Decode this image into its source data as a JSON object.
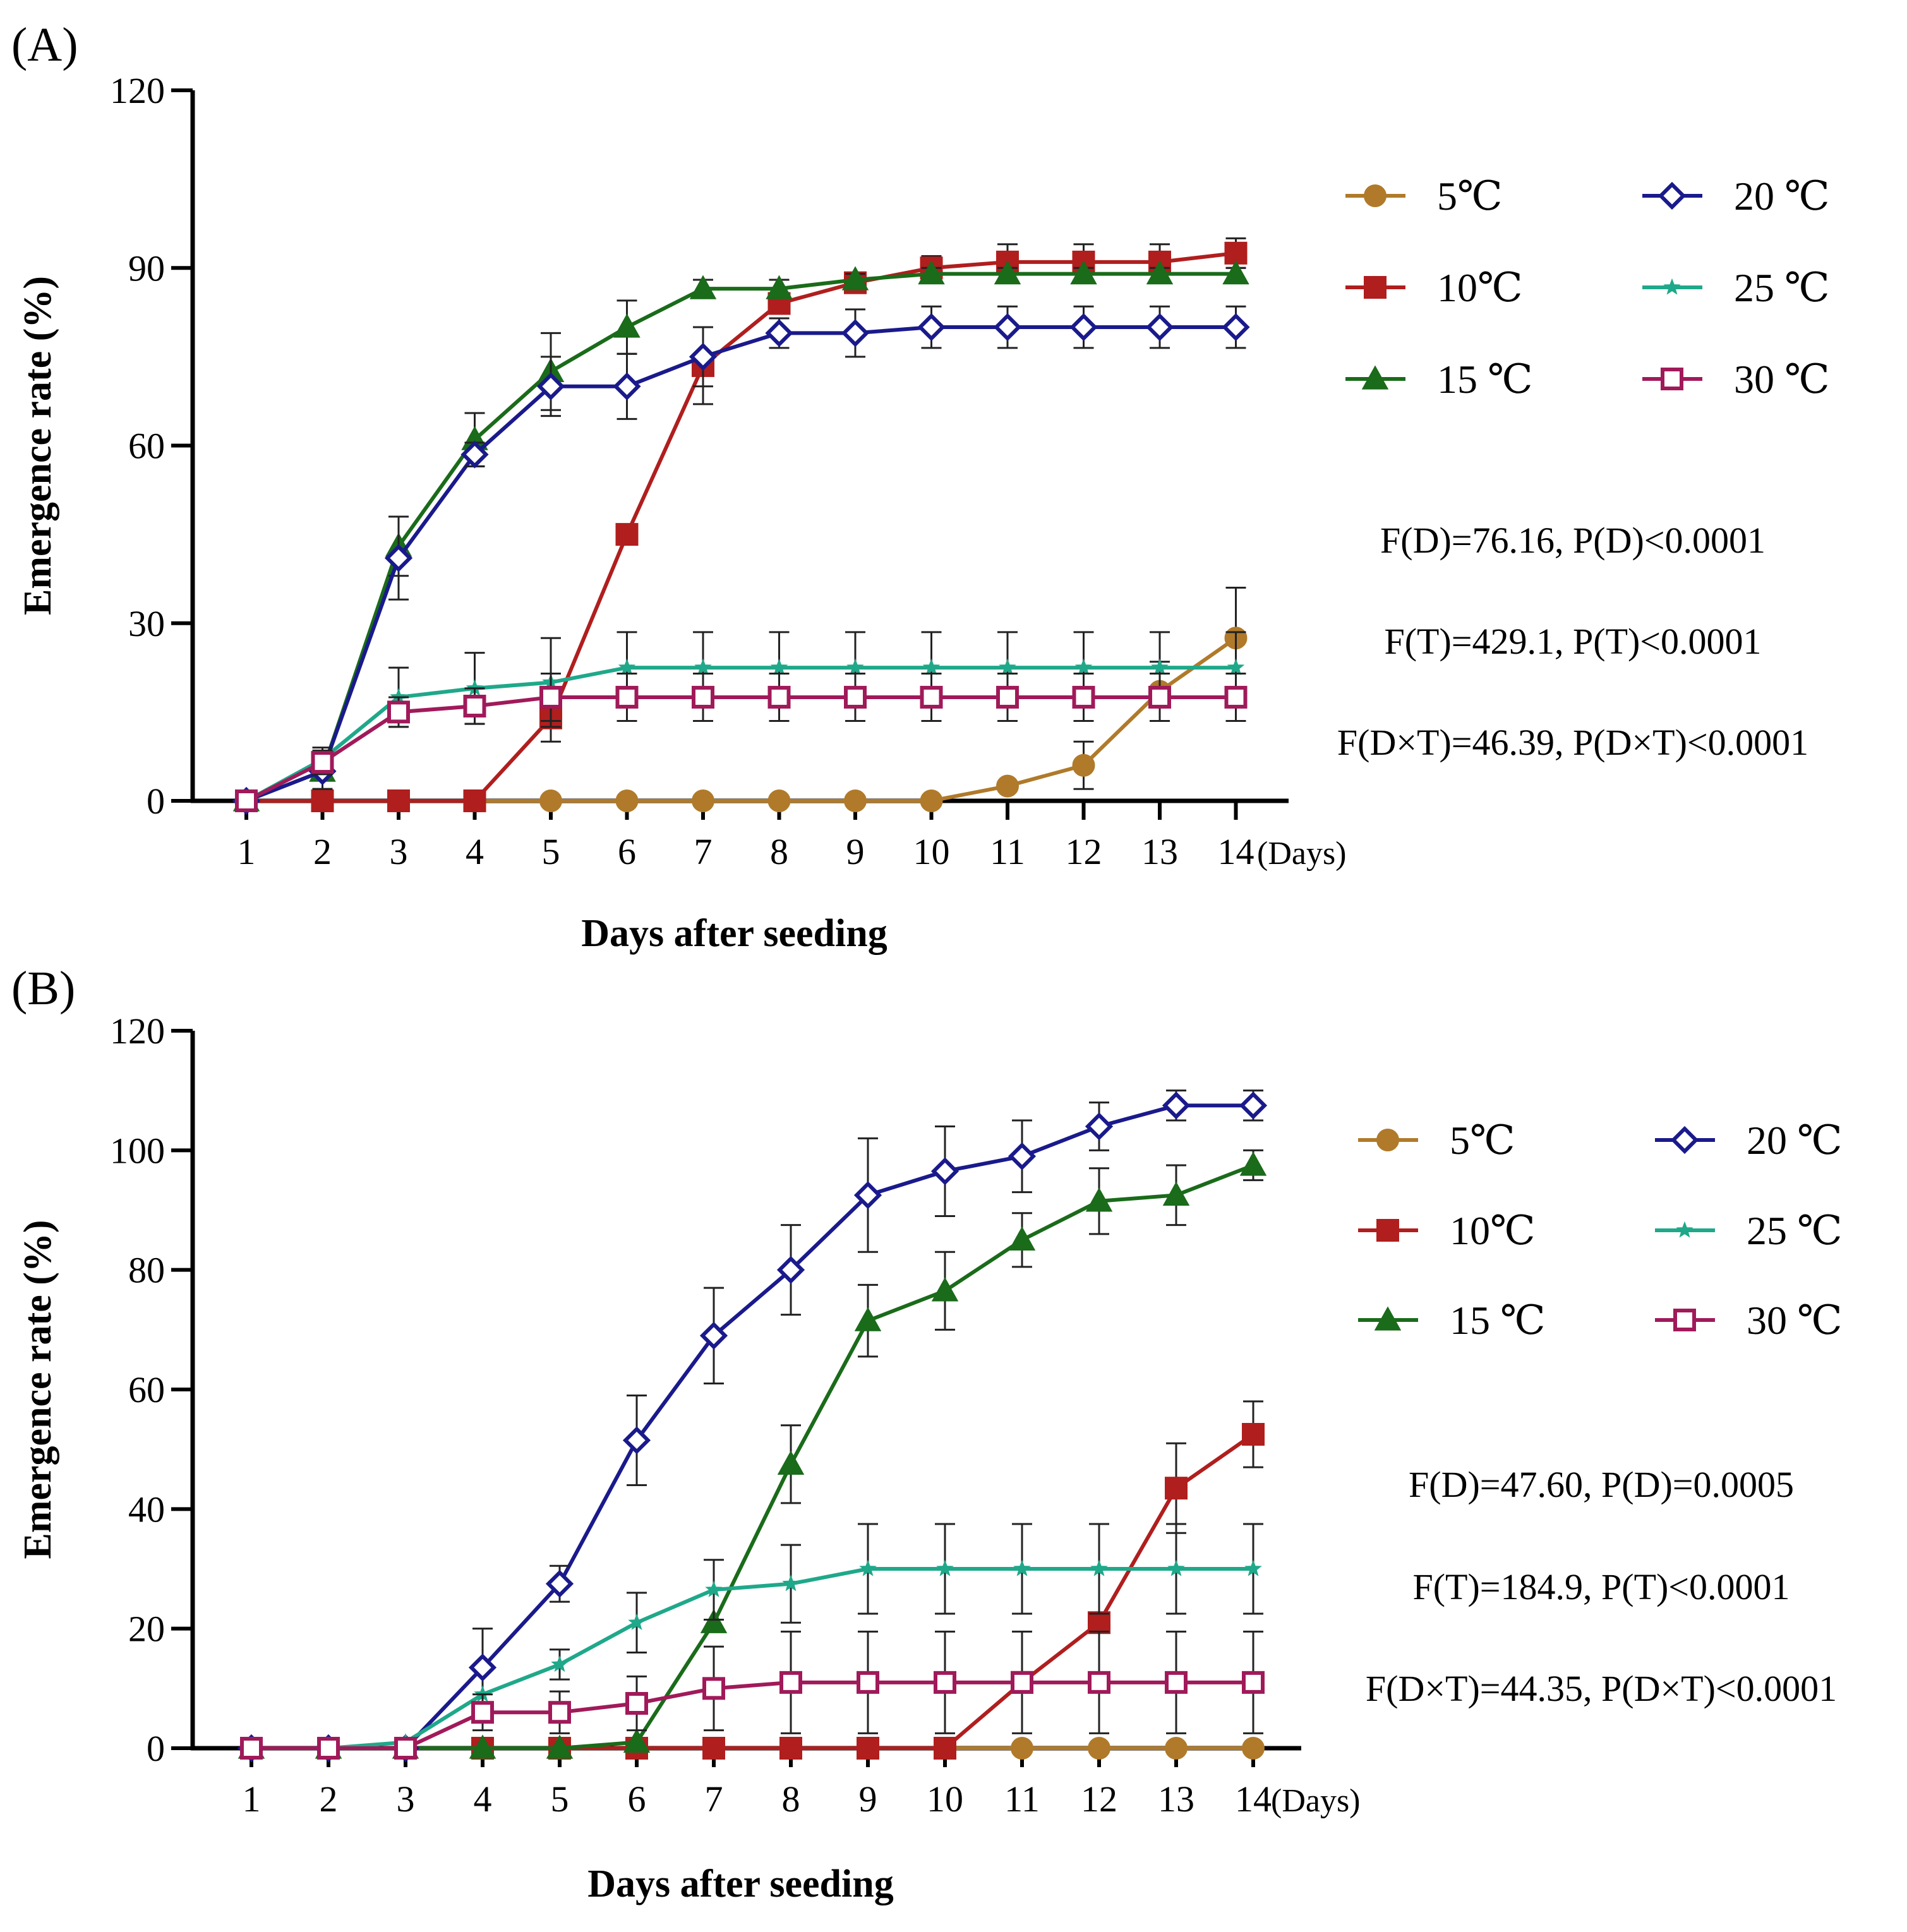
{
  "chart_data": [
    {
      "type": "line",
      "panel_label": "(A)",
      "xlabel": "Days after seeding",
      "x_unit": "(Days)",
      "ylabel": "Emergence rate (%)",
      "x": [
        1,
        2,
        3,
        4,
        5,
        6,
        7,
        8,
        9,
        10,
        11,
        12,
        13,
        14
      ],
      "xlim": [
        1,
        14
      ],
      "ylim": [
        0,
        120
      ],
      "yticks": [
        0,
        30,
        60,
        90,
        120
      ],
      "grid": false,
      "legend_position": "right",
      "series": [
        {
          "name": "5℃",
          "marker": "circle",
          "color": "#b07a2a",
          "values": [
            0,
            0,
            0,
            0,
            0,
            0,
            0,
            0,
            0,
            0,
            2.5,
            6,
            18.5,
            27.5
          ],
          "errors": [
            0,
            0,
            0,
            0,
            0,
            0,
            0,
            0,
            0,
            0,
            0,
            4,
            5,
            8.5
          ]
        },
        {
          "name": "10℃",
          "marker": "square",
          "color": "#b01e1e",
          "values": [
            0,
            0,
            0,
            0,
            14,
            45,
            73.5,
            84,
            87.5,
            90,
            91,
            91,
            91,
            92.5
          ],
          "errors": [
            0,
            0,
            0,
            0,
            4,
            0,
            6.5,
            0,
            0,
            2,
            3,
            3,
            3,
            2.5
          ]
        },
        {
          "name": "15 ℃",
          "marker": "triangle",
          "color": "#1a6b1a",
          "values": [
            0,
            5,
            43,
            61,
            72.5,
            80,
            86.5,
            86.5,
            88,
            89,
            89,
            89,
            89,
            89
          ],
          "errors": [
            0,
            3,
            5,
            4.5,
            6.5,
            4.5,
            1.5,
            1.5,
            1,
            1,
            1,
            1,
            1,
            1
          ]
        },
        {
          "name": "20 ℃",
          "marker": "diamond-open",
          "color": "#1a1a8c",
          "values": [
            0,
            5,
            41,
            58.5,
            70,
            70,
            75,
            79,
            79,
            80,
            80,
            80,
            80,
            80
          ],
          "errors": [
            0,
            3,
            7,
            2,
            5,
            5.5,
            5,
            2.5,
            4,
            3.5,
            3.5,
            3.5,
            3.5,
            3.5
          ]
        },
        {
          "name": "25 ℃",
          "marker": "star",
          "color": "#1fa88a",
          "values": [
            0,
            7,
            17.5,
            19,
            20,
            22.5,
            22.5,
            22.5,
            22.5,
            22.5,
            22.5,
            22.5,
            22.5,
            22.5
          ],
          "errors": [
            0,
            2,
            5,
            6,
            7.5,
            6,
            6,
            6,
            6,
            6,
            6,
            6,
            6,
            6
          ]
        },
        {
          "name": "30 ℃",
          "marker": "square-open",
          "color": "#a01a5a",
          "values": [
            0,
            6.5,
            15,
            16,
            17.5,
            17.5,
            17.5,
            17.5,
            17.5,
            17.5,
            17.5,
            17.5,
            17.5,
            17.5
          ],
          "errors": [
            0,
            2,
            2.5,
            3,
            4,
            4,
            4,
            4,
            4,
            4,
            4,
            4,
            4,
            4
          ]
        }
      ],
      "annotations": [
        "F(D)=76.16, P(D)<0.0001",
        "F(T)=429.1, P(T)<0.0001",
        "F(D×T)=46.39, P(D×T)<0.0001"
      ]
    },
    {
      "type": "line",
      "panel_label": "(B)",
      "xlabel": "Days after seeding",
      "x_unit": "(Days)",
      "ylabel": "Emergence rate (%)",
      "x": [
        1,
        2,
        3,
        4,
        5,
        6,
        7,
        8,
        9,
        10,
        11,
        12,
        13,
        14
      ],
      "xlim": [
        1,
        14
      ],
      "ylim": [
        0,
        120
      ],
      "yticks": [
        0,
        20,
        40,
        60,
        80,
        100,
        120
      ],
      "grid": false,
      "legend_position": "right",
      "series": [
        {
          "name": "5℃",
          "marker": "circle",
          "color": "#b07a2a",
          "values": [
            0,
            0,
            0,
            0,
            0,
            0,
            0,
            0,
            0,
            0,
            0,
            0,
            0,
            0
          ],
          "errors": [
            0,
            0,
            0,
            0,
            0,
            0,
            0,
            0,
            0,
            0,
            0,
            0,
            0,
            0
          ]
        },
        {
          "name": "10℃",
          "marker": "square",
          "color": "#b01e1e",
          "values": [
            0,
            0,
            0,
            0,
            0,
            0,
            0,
            0,
            0,
            0,
            11,
            21,
            43.5,
            52.5
          ],
          "errors": [
            0,
            0,
            0,
            0,
            0,
            0,
            0,
            0,
            0,
            0,
            0,
            0,
            7.5,
            5.5
          ]
        },
        {
          "name": "15 ℃",
          "marker": "triangle",
          "color": "#1a6b1a",
          "values": [
            0,
            0,
            0,
            0,
            0,
            1,
            21,
            47.5,
            71.5,
            76.5,
            85,
            91.5,
            92.5,
            97.5
          ],
          "errors": [
            0,
            0,
            0,
            0,
            0,
            0,
            0,
            6.5,
            6,
            6.5,
            4.5,
            5.5,
            5,
            2.5
          ]
        },
        {
          "name": "20 ℃",
          "marker": "diamond-open",
          "color": "#1a1a8c",
          "values": [
            0,
            0,
            0,
            13.5,
            27.5,
            51.5,
            69,
            80,
            92.5,
            96.5,
            99,
            104,
            107.5,
            107.5
          ],
          "errors": [
            0,
            0,
            0,
            6.5,
            3,
            7.5,
            8,
            7.5,
            9.5,
            7.5,
            6,
            4,
            2.5,
            2.5
          ]
        },
        {
          "name": "25 ℃",
          "marker": "star",
          "color": "#1fa88a",
          "values": [
            0,
            0,
            1,
            9,
            14,
            21,
            26.5,
            27.5,
            30,
            30,
            30,
            30,
            30,
            30
          ],
          "errors": [
            0,
            0,
            0,
            0,
            2.5,
            5,
            5,
            6.5,
            7.5,
            7.5,
            7.5,
            7.5,
            7.5,
            7.5
          ]
        },
        {
          "name": "30 ℃",
          "marker": "square-open",
          "color": "#a01a5a",
          "values": [
            0,
            0,
            0,
            6,
            6,
            7.5,
            10,
            11,
            11,
            11,
            11,
            11,
            11,
            11
          ],
          "errors": [
            0,
            0,
            0,
            3,
            3.5,
            4.5,
            7,
            8.5,
            8.5,
            8.5,
            8.5,
            8.5,
            8.5,
            8.5
          ]
        }
      ],
      "annotations": [
        "F(D)=47.60, P(D)=0.0005",
        "F(T)=184.9, P(T)<0.0001",
        "F(D×T)=44.35, P(D×T)<0.0001"
      ]
    }
  ]
}
